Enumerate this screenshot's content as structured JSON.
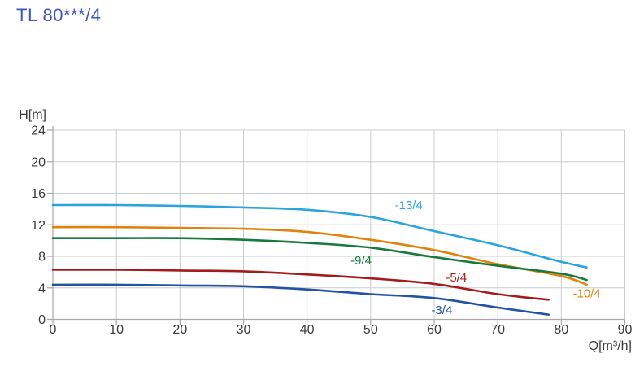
{
  "page": {
    "title": "TL 80***/4",
    "title_color": "#4156bc",
    "background": "#ffffff"
  },
  "chart_data": {
    "type": "line",
    "title": "TL 80***/4",
    "xlabel": "Q[m³/h]",
    "ylabel": "H[m]",
    "xlim": [
      0,
      90
    ],
    "ylim": [
      0,
      24
    ],
    "xticks": [
      0,
      10,
      20,
      30,
      40,
      50,
      60,
      70,
      80,
      90
    ],
    "yticks": [
      0,
      4,
      8,
      12,
      16,
      20,
      24
    ],
    "grid": true,
    "grid_color": "#cbcbcb",
    "axis_color": "#a8a8a8",
    "text_color": "#3a3a3a",
    "legend_position": "inline-curve-labels",
    "series": [
      {
        "name": "-13/4",
        "color": "#29a4de",
        "x": [
          0,
          10,
          20,
          30,
          40,
          50,
          60,
          70,
          80,
          84
        ],
        "y": [
          14.5,
          14.5,
          14.4,
          14.2,
          13.9,
          13.0,
          11.2,
          9.4,
          7.3,
          6.6
        ],
        "label_x": 56,
        "label_y": 14.5
      },
      {
        "name": "-10/4",
        "color": "#e0830e",
        "x": [
          0,
          10,
          20,
          30,
          40,
          50,
          60,
          70,
          80,
          84
        ],
        "y": [
          11.7,
          11.7,
          11.6,
          11.5,
          11.1,
          10.1,
          8.8,
          7.0,
          5.5,
          4.4
        ],
        "label_x": 84,
        "label_y": 3.3
      },
      {
        "name": "-9/4",
        "color": "#17793e",
        "x": [
          0,
          10,
          20,
          30,
          40,
          50,
          60,
          70,
          80,
          84
        ],
        "y": [
          10.3,
          10.3,
          10.3,
          10.1,
          9.7,
          9.1,
          7.9,
          6.8,
          5.8,
          5.0
        ],
        "label_x": 48.5,
        "label_y": 7.5
      },
      {
        "name": "-5/4",
        "color": "#a31b1b",
        "x": [
          0,
          10,
          20,
          30,
          40,
          50,
          60,
          70,
          78
        ],
        "y": [
          6.3,
          6.3,
          6.2,
          6.1,
          5.7,
          5.2,
          4.5,
          3.2,
          2.5
        ],
        "label_x": 63.5,
        "label_y": 5.3
      },
      {
        "name": "-3/4",
        "color": "#2453a6",
        "x": [
          0,
          10,
          20,
          30,
          40,
          50,
          60,
          70,
          78
        ],
        "y": [
          4.4,
          4.4,
          4.3,
          4.2,
          3.8,
          3.2,
          2.7,
          1.5,
          0.6
        ],
        "label_x": 61.2,
        "label_y": 1.2
      }
    ]
  }
}
